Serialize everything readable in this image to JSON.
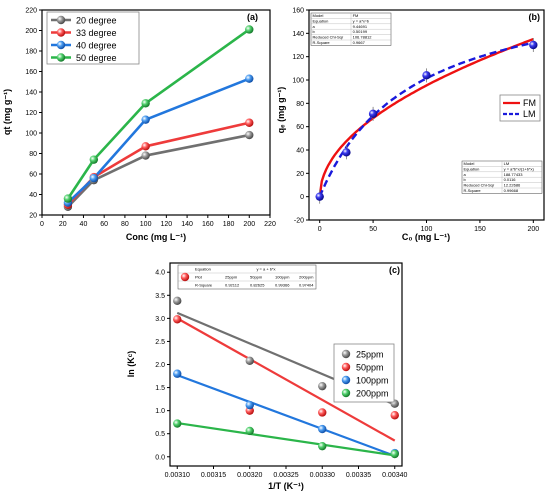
{
  "chart_data": [
    {
      "panel": "(a)",
      "type": "line",
      "xlabel": "Conc (mg L⁻¹)",
      "ylabel": "qt (mg g⁻¹)",
      "xlim": [
        0,
        220
      ],
      "ylim": [
        20,
        220
      ],
      "xticks": [
        0,
        20,
        40,
        60,
        80,
        100,
        120,
        140,
        160,
        180,
        200,
        220
      ],
      "yticks": [
        20,
        40,
        60,
        80,
        100,
        120,
        140,
        160,
        180,
        200,
        220
      ],
      "x": [
        25,
        50,
        100,
        200
      ],
      "legend_position": "top-left",
      "grid": false,
      "series": [
        {
          "name": "20 degree",
          "color": "#707070",
          "values": [
            28,
            54,
            78,
            98
          ]
        },
        {
          "name": "33 degree",
          "color": "#ee3b3b",
          "values": [
            30,
            57,
            87,
            110
          ]
        },
        {
          "name": "40 degree",
          "color": "#2277dd",
          "values": [
            32,
            56,
            113,
            153
          ]
        },
        {
          "name": "50 degree",
          "color": "#2bb54a",
          "values": [
            36,
            74,
            129,
            201
          ]
        }
      ]
    },
    {
      "panel": "(b)",
      "type": "scatter",
      "xlabel": "C₀ (mg L⁻¹)",
      "ylabel": "qₑ (mg g⁻¹)",
      "xlim": [
        -10,
        210
      ],
      "ylim": [
        -20,
        160
      ],
      "xticks": [
        0,
        50,
        100,
        150,
        200
      ],
      "yticks": [
        -20,
        0,
        20,
        40,
        60,
        80,
        100,
        120,
        140,
        160
      ],
      "legend_position": "right",
      "points": {
        "color": "#1a1adb",
        "x": [
          0,
          25,
          50,
          100,
          200
        ],
        "y": [
          0,
          38,
          71,
          104,
          130
        ]
      },
      "fits": [
        {
          "name": "FM",
          "color": "#ee1111",
          "style": "solid",
          "model": "freundlich",
          "a": 9.44691,
          "b": 0.50199
        },
        {
          "name": "LM",
          "color": "#1a1adb",
          "style": "dashed",
          "model": "langmuir",
          "a": 188.77433,
          "b": 0.0116
        }
      ],
      "table_fm": {
        "rows": [
          [
            "Model",
            "FM"
          ],
          [
            "Equation",
            "y = a*x^b"
          ],
          [
            "a",
            "9.44691"
          ],
          [
            "b",
            "0.50199"
          ],
          [
            "Reduced Chi-Sqr",
            "106.78812"
          ],
          [
            "R-Square",
            "0.9667"
          ]
        ]
      },
      "table_lm": {
        "rows": [
          [
            "Model",
            "LM"
          ],
          [
            "Equation",
            "y = a*b*x/(1+b*x)"
          ],
          [
            "a",
            "188.77433"
          ],
          [
            "b",
            "0.0116"
          ],
          [
            "Reduced Chi-Sqr",
            "12.22686"
          ],
          [
            "R-Square",
            "0.99668"
          ]
        ]
      }
    },
    {
      "panel": "(c)",
      "type": "scatter",
      "xlabel": "1/T (K⁻¹)",
      "ylabel": "ln (Kᶜ)",
      "xlim": [
        0.00309,
        0.00341
      ],
      "ylim": [
        -0.2,
        4.2
      ],
      "xticks": [
        "0.00310",
        "0.00315",
        "0.00320",
        "0.00325",
        "0.00330",
        "0.00335",
        "0.00340"
      ],
      "xtick_values": [
        0.0031,
        0.00315,
        0.0032,
        0.00325,
        0.0033,
        0.00335,
        0.0034
      ],
      "yticks": [
        "0.0",
        "0.5",
        "1.0",
        "1.5",
        "2.0",
        "2.5",
        "3.0",
        "3.5",
        "4.0"
      ],
      "ytick_values": [
        0,
        0.5,
        1,
        1.5,
        2,
        2.5,
        3,
        3.5,
        4
      ],
      "legend_position": "right",
      "x": [
        0.0031,
        0.0032,
        0.0033,
        0.0034
      ],
      "series": [
        {
          "name": "25ppm",
          "color": "#707070",
          "values": [
            3.38,
            2.08,
            1.53,
            1.15
          ],
          "fit": [
            3.12,
            1.13
          ]
        },
        {
          "name": "50ppm",
          "color": "#ee3b3b",
          "values": [
            2.98,
            1.0,
            0.96,
            0.9
          ],
          "fit": [
            3.0,
            0.35
          ]
        },
        {
          "name": "100ppm",
          "color": "#2277dd",
          "values": [
            1.8,
            1.12,
            0.6,
            0.08
          ],
          "fit": [
            1.77,
            0.02
          ]
        },
        {
          "name": "200ppm",
          "color": "#2bb54a",
          "values": [
            0.72,
            0.56,
            0.23,
            0.06
          ],
          "fit": [
            0.73,
            0.03
          ]
        }
      ],
      "table": {
        "header": [
          "Equation",
          "y = a + b*x"
        ],
        "columns": [
          "Plot",
          "25ppm",
          "50ppm",
          "100ppm",
          "200ppm"
        ],
        "r_square": [
          "R-Square",
          "0.92112",
          "0.82625",
          "0.99366",
          "0.97404"
        ]
      }
    }
  ]
}
